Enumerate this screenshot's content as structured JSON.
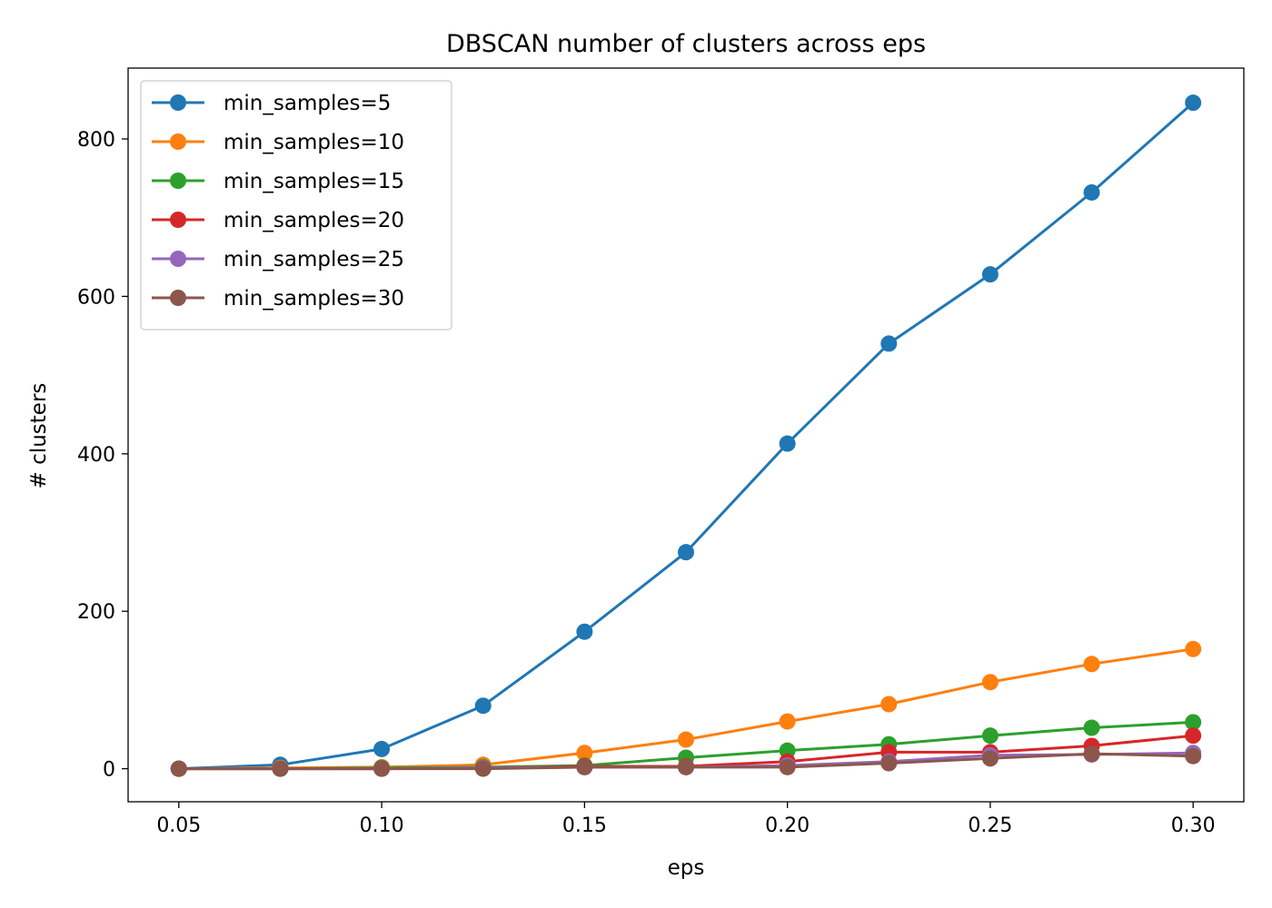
{
  "chart_data": {
    "type": "line",
    "title": "DBSCAN number of clusters across eps",
    "xlabel": "eps",
    "ylabel": "# clusters",
    "x": [
      0.05,
      0.075,
      0.1,
      0.125,
      0.15,
      0.175,
      0.2,
      0.225,
      0.25,
      0.275,
      0.3
    ],
    "xlim": [
      0.0375,
      0.3125
    ],
    "ylim": [
      -42,
      890
    ],
    "xticks": [
      0.05,
      0.1,
      0.15,
      0.2,
      0.25,
      0.3
    ],
    "xtick_labels": [
      "0.05",
      "0.10",
      "0.15",
      "0.20",
      "0.25",
      "0.30"
    ],
    "yticks": [
      0,
      200,
      400,
      600,
      800
    ],
    "ytick_labels": [
      "0",
      "200",
      "400",
      "600",
      "800"
    ],
    "grid": false,
    "legend_position": "top-left",
    "series": [
      {
        "name": "min_samples=5",
        "color": "#1f77b4",
        "values": [
          0,
          5,
          25,
          80,
          174,
          275,
          413,
          540,
          628,
          732,
          846
        ]
      },
      {
        "name": "min_samples=10",
        "color": "#ff7f0e",
        "values": [
          0,
          1,
          2,
          5,
          20,
          37,
          60,
          82,
          110,
          133,
          152
        ]
      },
      {
        "name": "min_samples=15",
        "color": "#2ca02c",
        "values": [
          0,
          0,
          1,
          2,
          4,
          14,
          23,
          31,
          42,
          52,
          59
        ]
      },
      {
        "name": "min_samples=20",
        "color": "#d62728",
        "values": [
          0,
          0,
          0,
          1,
          3,
          3,
          9,
          21,
          21,
          29,
          42
        ]
      },
      {
        "name": "min_samples=25",
        "color": "#9467bd",
        "values": [
          0,
          0,
          0,
          1,
          2,
          2,
          4,
          9,
          17,
          18,
          20
        ]
      },
      {
        "name": "min_samples=30",
        "color": "#8c564b",
        "values": [
          0,
          0,
          0,
          0,
          2,
          2,
          2,
          7,
          13,
          19,
          16
        ]
      }
    ]
  }
}
